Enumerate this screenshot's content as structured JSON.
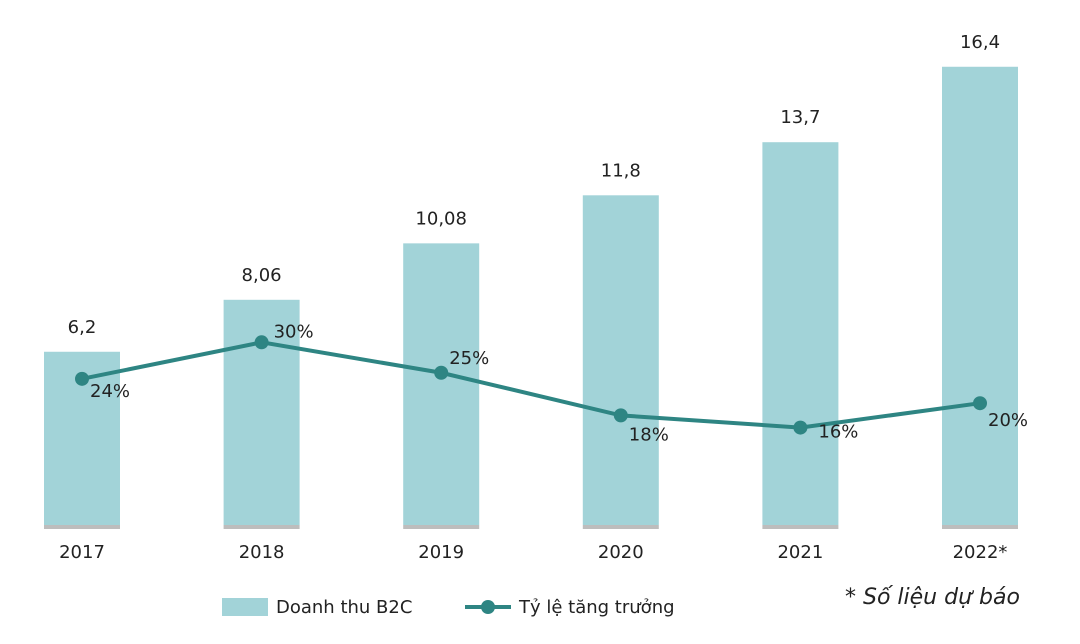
{
  "chart_data": {
    "type": "bar",
    "categories": [
      "2017",
      "2018",
      "2019",
      "2020",
      "2021",
      "2022*"
    ],
    "series": [
      {
        "name": "Doanh thu B2C",
        "type": "bar",
        "color": "#a2d3d8",
        "values": [
          6.2,
          8.06,
          10.08,
          11.8,
          13.7,
          16.4
        ],
        "value_labels": [
          "6,2",
          "8,06",
          "10,08",
          "11,8",
          "13,7",
          "16,4"
        ]
      },
      {
        "name": "Tỷ lệ tăng trưởng",
        "type": "line",
        "axis": "y2",
        "color": "#2e8583",
        "values": [
          24,
          30,
          25,
          18,
          16,
          20
        ],
        "value_labels": [
          "24%",
          "30%",
          "25%",
          "18%",
          "16%",
          "20%"
        ]
      }
    ],
    "ylim": [
      0,
      17
    ],
    "y2lim": [
      0,
      78
    ],
    "note": "* Số liệu dự báo"
  }
}
